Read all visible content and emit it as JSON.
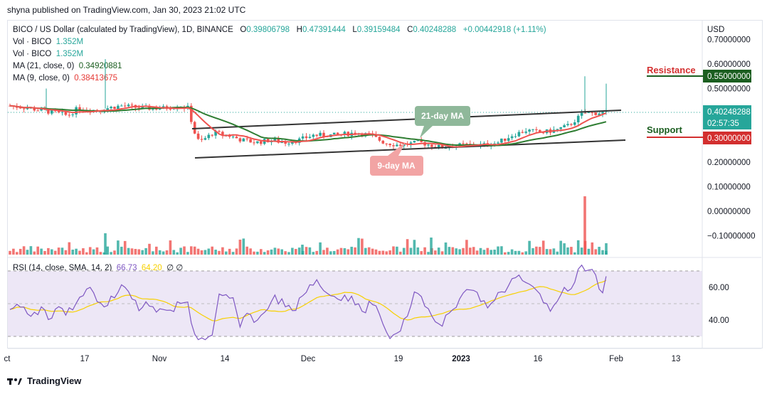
{
  "header": {
    "published": "shyna published on TradingView.com, Jan 30, 2023 21:02 UTC"
  },
  "legend": {
    "symbol": "BICO / US Dollar (calculated by TradingView), 1D, BINANCE",
    "o_label": "O",
    "o": "0.39806798",
    "h_label": "H",
    "h": "0.47391444",
    "l_label": "L",
    "l": "0.39159484",
    "c_label": "C",
    "c": "0.40248288",
    "change": "+0.00442918 (+1.11%)",
    "vol1_label": "Vol · BICO",
    "vol1": "1.352M",
    "vol2_label": "Vol · BICO",
    "vol2": "1.352M",
    "ma21_label": "MA (21, close, 0)",
    "ma21": "0.34920881",
    "ma9_label": "MA (9, close, 0)",
    "ma9": "0.38413675"
  },
  "rsi_legend": {
    "label": "RSI (14, close, SMA, 14, 2)",
    "rsi": "66.73",
    "sma": "64.20",
    "extra": "∅  ∅"
  },
  "annotations": {
    "resistance": "Resistance",
    "support": "Support",
    "ma21_callout": "21-day MA",
    "ma9_callout": "9-day MA"
  },
  "price_axis": {
    "currency": "USD",
    "ticks": [
      "0.70000000",
      "0.60000000",
      "0.50000000",
      "0.20000000",
      "0.10000000",
      "0.00000000",
      "−0.10000000"
    ],
    "current_price": "0.40248288",
    "countdown": "02:57:35",
    "resistance_price": "0.55000000",
    "support_price": "0.30000000"
  },
  "rsi_axis": {
    "ticks": [
      "60.00",
      "40.00"
    ]
  },
  "time_axis": {
    "ticks": [
      "ct",
      "17",
      "Nov",
      "14",
      "Dec",
      "19",
      "2023",
      "16",
      "Feb",
      "13"
    ]
  },
  "footer": {
    "brand": "TradingView"
  },
  "colors": {
    "up": "#26a69a",
    "down": "#ef5350",
    "ma21": "#2e7d32",
    "ma9": "#ef5350",
    "rsi": "#7e57c2",
    "rsi_sma": "#f7d000",
    "trend": "#333333"
  },
  "chart_data": {
    "type": "candlestick",
    "interval": "1D",
    "close_series_approx": [
      {
        "date": "2022-10-10",
        "close": 0.43
      },
      {
        "date": "2022-10-17",
        "close": 0.41
      },
      {
        "date": "2022-10-24",
        "close": 0.42
      },
      {
        "date": "2022-10-31",
        "close": 0.43
      },
      {
        "date": "2022-11-07",
        "close": 0.43
      },
      {
        "date": "2022-11-09",
        "close": 0.3
      },
      {
        "date": "2022-11-14",
        "close": 0.33
      },
      {
        "date": "2022-11-21",
        "close": 0.3
      },
      {
        "date": "2022-11-28",
        "close": 0.3
      },
      {
        "date": "2022-12-05",
        "close": 0.32
      },
      {
        "date": "2022-12-12",
        "close": 0.33
      },
      {
        "date": "2022-12-19",
        "close": 0.29
      },
      {
        "date": "2022-12-26",
        "close": 0.27
      },
      {
        "date": "2023-01-02",
        "close": 0.27
      },
      {
        "date": "2023-01-09",
        "close": 0.31
      },
      {
        "date": "2023-01-16",
        "close": 0.34
      },
      {
        "date": "2023-01-23",
        "close": 0.4
      },
      {
        "date": "2023-01-30",
        "close": 0.40248288
      }
    ],
    "resistance_level": 0.55,
    "support_level": 0.3,
    "rsi_levels": [
      30,
      50,
      70
    ],
    "rsi_last": 66.73,
    "rsi_sma_last": 64.2
  }
}
